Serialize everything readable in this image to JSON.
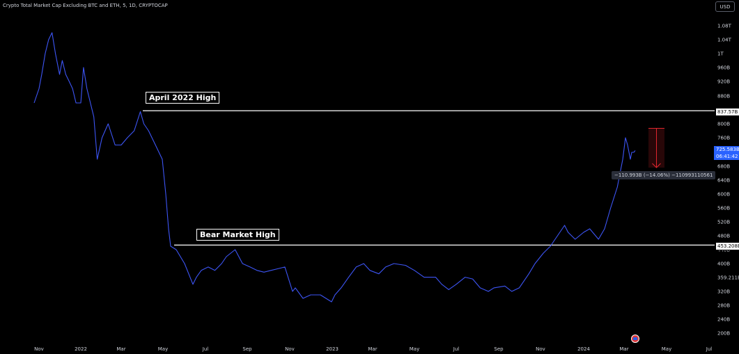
{
  "header": {
    "title": "Crypto Total Market Cap Excluding BTC and ETH, 5, 1D, CRYPTOCAP",
    "currency": "USD"
  },
  "annotations": {
    "april_high_label": "April 2022 High",
    "bear_high_label": "Bear Market High",
    "april_high_price": "837.57B",
    "bear_high_price": "453.208B",
    "current_price": "725.583B",
    "countdown": "06:41:42",
    "measure": "−110.993B (−14.06%) −110993110561"
  },
  "colors": {
    "series": "#3d55f5",
    "measure": "#e0262e",
    "background": "#000000",
    "level_lines": "#ffffff"
  },
  "chart_data": {
    "type": "line",
    "title": "Crypto Total Market Cap Excluding BTC and ETH, 5, 1D, CRYPTOCAP",
    "series": [
      {
        "values_unit": "billion USD",
        "x": [
          "2021-10-25",
          "2021-11-01",
          "2021-11-05",
          "2021-11-10",
          "2021-11-15",
          "2021-11-20",
          "2021-11-25",
          "2021-12-01",
          "2021-12-05",
          "2021-12-10",
          "2021-12-15",
          "2021-12-20",
          "2021-12-25",
          "2022-01-01",
          "2022-01-05",
          "2022-01-10",
          "2022-01-15",
          "2022-01-20",
          "2022-01-25",
          "2022-02-01",
          "2022-02-10",
          "2022-02-20",
          "2022-03-01",
          "2022-03-10",
          "2022-03-20",
          "2022-03-29",
          "2022-04-03",
          "2022-04-10",
          "2022-04-20",
          "2022-04-30",
          "2022-05-05",
          "2022-05-09",
          "2022-05-12",
          "2022-05-20",
          "2022-06-01",
          "2022-06-13",
          "2022-06-18",
          "2022-06-25",
          "2022-07-05",
          "2022-07-15",
          "2022-07-25",
          "2022-08-01",
          "2022-08-14",
          "2022-08-25",
          "2022-09-05",
          "2022-09-15",
          "2022-09-25",
          "2022-10-05",
          "2022-10-15",
          "2022-10-25",
          "2022-11-05",
          "2022-11-09",
          "2022-11-20",
          "2022-12-01",
          "2022-12-15",
          "2022-12-31",
          "2023-01-05",
          "2023-01-14",
          "2023-01-25",
          "2023-02-05",
          "2023-02-16",
          "2023-02-25",
          "2023-03-10",
          "2023-03-20",
          "2023-04-01",
          "2023-04-18",
          "2023-05-01",
          "2023-05-15",
          "2023-06-01",
          "2023-06-10",
          "2023-06-20",
          "2023-07-01",
          "2023-07-14",
          "2023-07-25",
          "2023-08-05",
          "2023-08-17",
          "2023-08-25",
          "2023-09-10",
          "2023-09-20",
          "2023-10-01",
          "2023-10-15",
          "2023-10-24",
          "2023-11-05",
          "2023-11-15",
          "2023-11-25",
          "2023-12-05",
          "2023-12-10",
          "2023-12-20",
          "2024-01-01",
          "2024-01-10",
          "2024-01-23",
          "2024-02-01",
          "2024-02-10",
          "2024-02-20",
          "2024-02-28",
          "2024-03-03",
          "2024-03-06",
          "2024-03-10",
          "2024-03-12",
          "2024-03-15",
          "2024-03-17"
        ],
        "values": [
          860,
          900,
          940,
          1000,
          1040,
          1060,
          1000,
          940,
          980,
          940,
          920,
          900,
          860,
          860,
          960,
          900,
          860,
          820,
          700,
          760,
          800,
          740,
          740,
          760,
          780,
          835,
          800,
          780,
          740,
          700,
          600,
          500,
          450,
          440,
          400,
          340,
          360,
          380,
          390,
          380,
          400,
          420,
          440,
          400,
          390,
          380,
          375,
          380,
          385,
          390,
          320,
          330,
          300,
          310,
          310,
          290,
          310,
          330,
          360,
          390,
          400,
          380,
          370,
          390,
          400,
          395,
          380,
          360,
          360,
          340,
          325,
          340,
          360,
          355,
          330,
          320,
          330,
          335,
          320,
          330,
          370,
          400,
          430,
          450,
          480,
          510,
          490,
          470,
          490,
          500,
          470,
          500,
          560,
          620,
          700,
          760,
          740,
          700,
          720,
          720,
          725
        ]
      }
    ],
    "yticks": [
      "1.08T",
      "1.04T",
      "1T",
      "960B",
      "920B",
      "880B",
      "840B",
      "800B",
      "760B",
      "720B",
      "680B",
      "640B",
      "600B",
      "560B",
      "520B",
      "480B",
      "440B",
      "400B",
      "359.211B",
      "320B",
      "280B",
      "240B",
      "200B"
    ],
    "xticks": [
      "Nov",
      "2022",
      "Mar",
      "May",
      "Jul",
      "Sep",
      "Nov",
      "2023",
      "Mar",
      "May",
      "Jul",
      "Sep",
      "Nov",
      "2024",
      "Mar",
      "May",
      "Jul"
    ],
    "ylim": [
      180,
      1100
    ],
    "horizontal_levels": [
      837.57,
      453.208
    ],
    "measure": {
      "from": 787.0,
      "to": 676.0,
      "change": "−110.993B",
      "percent": "−14.06%"
    }
  }
}
